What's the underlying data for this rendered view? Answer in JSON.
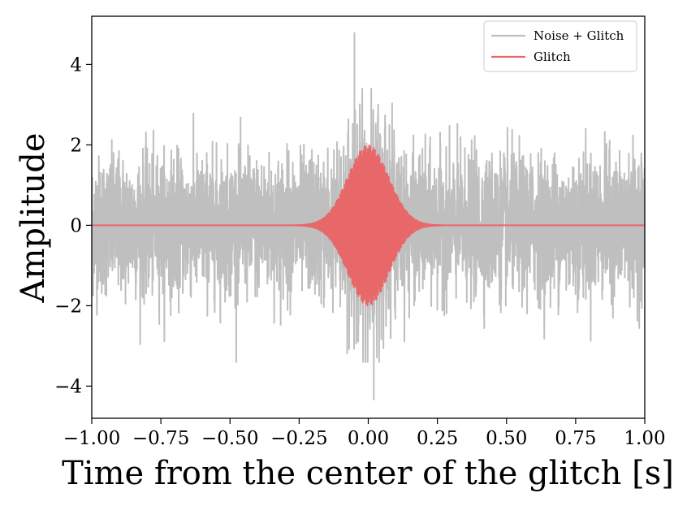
{
  "chart_data": {
    "type": "line",
    "xlabel": "Time from the center of the glitch [s]",
    "ylabel": "Amplitude",
    "xlim": [
      -1.0,
      1.0
    ],
    "ylim": [
      -4.8,
      5.2
    ],
    "xticks": [
      -1.0,
      -0.75,
      -0.5,
      -0.25,
      0.0,
      0.25,
      0.5,
      0.75,
      1.0
    ],
    "xtick_labels": [
      "−1.00",
      "−0.75",
      "−0.50",
      "−0.25",
      "0.00",
      "0.25",
      "0.50",
      "0.75",
      "1.00"
    ],
    "yticks": [
      -4,
      -2,
      0,
      2,
      4
    ],
    "ytick_labels": [
      "−4",
      "−2",
      "0",
      "2",
      "4"
    ],
    "grid": false,
    "legend_position": "top-right",
    "series": [
      {
        "name": "Noise + Glitch",
        "color": "#bfbfbf",
        "description_values": {
          "typical_range": [
            -2.5,
            2.5
          ],
          "peak_max": 4.8,
          "peak_max_x": -0.05,
          "peak_min": -4.35,
          "peak_min_x": 0.02
        }
      },
      {
        "name": "Glitch",
        "color": "#e8686a",
        "envelope_amplitude": 2.0,
        "envelope_center": 0.0,
        "envelope_halfwidth": 0.25
      }
    ]
  }
}
